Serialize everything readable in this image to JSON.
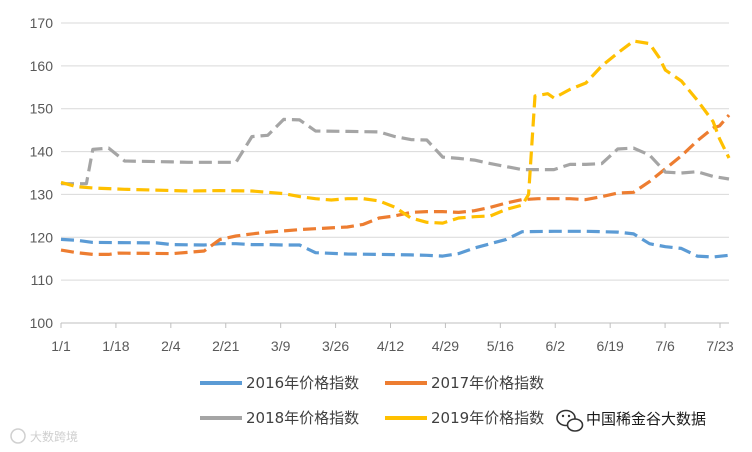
{
  "chart_data": {
    "type": "line",
    "title": "",
    "xlabel": "",
    "ylabel": "",
    "x_tick_labels": [
      "1/1",
      "1/18",
      "2/4",
      "2/21",
      "3/9",
      "3/26",
      "4/12",
      "4/29",
      "5/16",
      "6/2",
      "6/19",
      "7/6",
      "7/23"
    ],
    "y_ticks": [
      100,
      110,
      120,
      130,
      140,
      150,
      160,
      170
    ],
    "ylim": [
      100,
      170
    ],
    "x_domain": [
      0,
      210
    ],
    "grid": "horizontal",
    "legend_position": "bottom",
    "line_style": "dashed",
    "series": [
      {
        "name": "2016年价格指数",
        "color": "#5B9BD5",
        "points": [
          [
            0,
            119.5
          ],
          [
            5,
            119.3
          ],
          [
            10,
            118.8
          ],
          [
            30,
            118.7
          ],
          [
            35,
            118.3
          ],
          [
            45,
            118.2
          ],
          [
            50,
            118.5
          ],
          [
            55,
            118.5
          ],
          [
            60,
            118.3
          ],
          [
            65,
            118.3
          ],
          [
            70,
            118.2
          ],
          [
            75,
            118.2
          ],
          [
            80,
            116.4
          ],
          [
            90,
            116.1
          ],
          [
            100,
            116
          ],
          [
            110,
            115.9
          ],
          [
            115,
            115.8
          ],
          [
            120,
            115.6
          ],
          [
            125,
            116.2
          ],
          [
            130,
            117.5
          ],
          [
            135,
            118.5
          ],
          [
            140,
            119.5
          ],
          [
            145,
            121.3
          ],
          [
            155,
            121.4
          ],
          [
            165,
            121.4
          ],
          [
            175,
            121.2
          ],
          [
            180,
            120.8
          ],
          [
            185,
            118.5
          ],
          [
            190,
            117.8
          ],
          [
            195,
            117.4
          ],
          [
            200,
            115.6
          ],
          [
            205,
            115.4
          ],
          [
            210,
            115.8
          ]
        ]
      },
      {
        "name": "2017年价格指数",
        "color": "#ED7D31",
        "points": [
          [
            0,
            117
          ],
          [
            5,
            116.4
          ],
          [
            10,
            116
          ],
          [
            15,
            116
          ],
          [
            18,
            116.3
          ],
          [
            35,
            116.2
          ],
          [
            40,
            116.5
          ],
          [
            45,
            116.8
          ],
          [
            50,
            119.5
          ],
          [
            55,
            120.3
          ],
          [
            60,
            120.8
          ],
          [
            65,
            121.2
          ],
          [
            70,
            121.5
          ],
          [
            75,
            121.8
          ],
          [
            80,
            122
          ],
          [
            90,
            122.4
          ],
          [
            95,
            123
          ],
          [
            100,
            124.5
          ],
          [
            105,
            125
          ],
          [
            110,
            125.8
          ],
          [
            115,
            126
          ],
          [
            120,
            126
          ],
          [
            125,
            125.8
          ],
          [
            130,
            126.2
          ],
          [
            135,
            127
          ],
          [
            140,
            128
          ],
          [
            145,
            128.8
          ],
          [
            150,
            129
          ],
          [
            160,
            129
          ],
          [
            165,
            128.8
          ],
          [
            170,
            129.5
          ],
          [
            175,
            130.3
          ],
          [
            180,
            130.5
          ],
          [
            185,
            133
          ],
          [
            190,
            136
          ],
          [
            195,
            139
          ],
          [
            200,
            142.5
          ],
          [
            205,
            145.5
          ],
          [
            207,
            146
          ],
          [
            210,
            148.5
          ]
        ]
      },
      {
        "name": "2018年价格指数",
        "color": "#A5A5A5",
        "points": [
          [
            0,
            132.5
          ],
          [
            8,
            132.5
          ],
          [
            10,
            140.5
          ],
          [
            15,
            140.8
          ],
          [
            20,
            137.8
          ],
          [
            35,
            137.6
          ],
          [
            40,
            137.5
          ],
          [
            55,
            137.5
          ],
          [
            60,
            143.5
          ],
          [
            65,
            143.8
          ],
          [
            70,
            147.5
          ],
          [
            75,
            147.4
          ],
          [
            80,
            144.8
          ],
          [
            90,
            144.7
          ],
          [
            100,
            144.6
          ],
          [
            105,
            143.5
          ],
          [
            110,
            142.8
          ],
          [
            115,
            142.7
          ],
          [
            120,
            138.7
          ],
          [
            125,
            138.4
          ],
          [
            130,
            138
          ],
          [
            135,
            137.2
          ],
          [
            140,
            136.5
          ],
          [
            145,
            135.8
          ],
          [
            155,
            135.8
          ],
          [
            160,
            137
          ],
          [
            165,
            137
          ],
          [
            170,
            137.2
          ],
          [
            175,
            140.6
          ],
          [
            180,
            140.8
          ],
          [
            185,
            139.2
          ],
          [
            190,
            135.2
          ],
          [
            195,
            135
          ],
          [
            200,
            135.3
          ],
          [
            205,
            134.2
          ],
          [
            210,
            133.6
          ]
        ]
      },
      {
        "name": "2019年价格指数",
        "color": "#FFC000",
        "points": [
          [
            0,
            132.8
          ],
          [
            5,
            131.8
          ],
          [
            10,
            131.5
          ],
          [
            20,
            131.2
          ],
          [
            30,
            131
          ],
          [
            40,
            130.8
          ],
          [
            50,
            130.9
          ],
          [
            60,
            130.8
          ],
          [
            65,
            130.5
          ],
          [
            70,
            130.2
          ],
          [
            75,
            129.5
          ],
          [
            80,
            129
          ],
          [
            85,
            128.7
          ],
          [
            90,
            129
          ],
          [
            95,
            129
          ],
          [
            100,
            128.5
          ],
          [
            105,
            127
          ],
          [
            110,
            124.5
          ],
          [
            115,
            123.5
          ],
          [
            120,
            123.3
          ],
          [
            125,
            124.5
          ],
          [
            130,
            124.8
          ],
          [
            135,
            125
          ],
          [
            140,
            126.5
          ],
          [
            145,
            127.5
          ],
          [
            147,
            130
          ],
          [
            149,
            153
          ],
          [
            153,
            153.5
          ],
          [
            155,
            152.5
          ],
          [
            160,
            154.5
          ],
          [
            165,
            156
          ],
          [
            170,
            160
          ],
          [
            175,
            163
          ],
          [
            180,
            165.8
          ],
          [
            185,
            165.2
          ],
          [
            188,
            162
          ],
          [
            190,
            159
          ],
          [
            195,
            156.5
          ],
          [
            200,
            152
          ],
          [
            205,
            147
          ],
          [
            207,
            143
          ],
          [
            210,
            138.5
          ]
        ]
      }
    ]
  },
  "watermark": {
    "left_text": "大数跨境",
    "right_text": "中国稀金谷大数据"
  }
}
